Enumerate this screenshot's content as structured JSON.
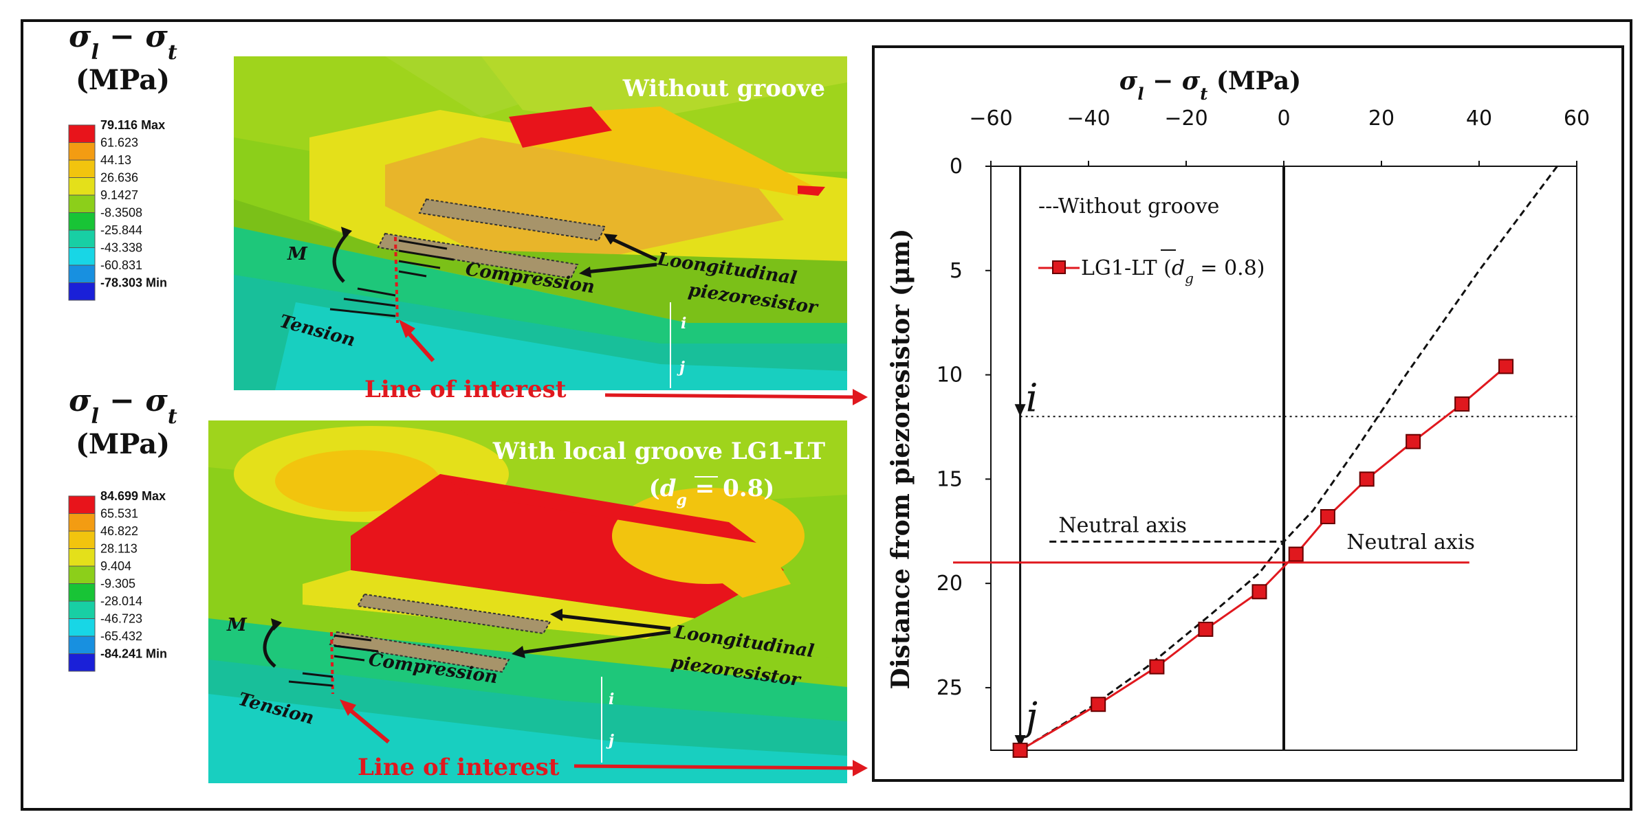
{
  "legend_top": {
    "symbol": "σ_l − σ_t",
    "unit": "(MPa)",
    "max_label": "79.116 Max",
    "values": [
      "61.623",
      "44.13",
      "26.636",
      "9.1427",
      "-8.3508",
      "-25.844",
      "-43.338",
      "-60.831"
    ],
    "min_label": "-78.303 Min",
    "colors": [
      "#e8141b",
      "#f39c12",
      "#f2c40e",
      "#e4e01a",
      "#8ccf1a",
      "#18c436",
      "#18cfa4",
      "#18d6e6",
      "#1890e0",
      "#1a20d8"
    ]
  },
  "legend_bottom": {
    "symbol": "σ_l − σ_t",
    "unit": "(MPa)",
    "max_label": "84.699 Max",
    "values": [
      "65.531",
      "46.822",
      "28.113",
      "9.404",
      "-9.305",
      "-28.014",
      "-46.723",
      "-65.432"
    ],
    "min_label": "-84.241 Min",
    "colors": [
      "#e8141b",
      "#f39c12",
      "#f2c40e",
      "#e4e01a",
      "#8ccf1a",
      "#18c436",
      "#18cfa4",
      "#18d6e6",
      "#1890e0",
      "#1a20d8"
    ]
  },
  "panel_top": {
    "title": "Without groove",
    "moment": "M",
    "compression": "Compression",
    "tension": "Tension",
    "piezo_line1": "Loongitudinal",
    "piezo_line2": "piezoresistor",
    "i": "i",
    "j": "j",
    "line_of_interest": "Line of interest"
  },
  "panel_bottom": {
    "title_line1": "With local groove LG1-LT",
    "title_line2": "(d_g = 0.8)",
    "moment": "M",
    "compression": "Compression",
    "tension": "Tension",
    "piezo_line1": "Loongitudinal",
    "piezo_line2": "piezoresistor",
    "i": "i",
    "j": "j",
    "line_of_interest": "Line of interest"
  },
  "chart_data": {
    "type": "line",
    "title": "",
    "xlabel": "σ_l − σ_t (MPa)",
    "ylabel": "Distance from piezoresistor (μm)",
    "xlim": [
      -60,
      60
    ],
    "ylim": [
      0,
      28
    ],
    "y_inverted": true,
    "x_axis_position": "top",
    "x_ticks": [
      -60,
      -40,
      -20,
      0,
      20,
      40,
      60
    ],
    "y_ticks": [
      0,
      5,
      10,
      15,
      20,
      25
    ],
    "series": [
      {
        "name": "Without groove",
        "style": "dashed",
        "color": "#111111",
        "x": [
          56,
          40,
          25,
          15,
          6,
          0,
          -5,
          -15,
          -28,
          -40,
          -54
        ],
        "y": [
          0,
          5,
          10,
          13.5,
          16.5,
          18,
          19.5,
          21.5,
          24,
          26,
          28
        ]
      },
      {
        "name": "LG1-LT (d_g = 0.8)",
        "style": "solid",
        "marker": "square",
        "color": "#e0181e",
        "x": [
          45.5,
          36.5,
          26.5,
          17,
          9,
          2.5,
          -5,
          -16,
          -26,
          -38,
          -54
        ],
        "y": [
          9.6,
          11.4,
          13.2,
          15,
          16.8,
          18.6,
          20.4,
          22.2,
          24,
          25.8,
          28
        ]
      }
    ],
    "annotations": [
      {
        "text": "Neutral axis",
        "color": "#111111",
        "y": 18
      },
      {
        "text": "Neutral axis",
        "color": "#e0181e",
        "y": 19
      },
      {
        "text": "i",
        "y": 12
      },
      {
        "text": "j",
        "y": 28
      }
    ],
    "legend": {
      "placement": "top-left",
      "entries": [
        "---Without groove",
        "LG1-LT (d_g = 0.8)"
      ],
      "entry1_text": "---Without groove",
      "entry2_prefix": "LG1-LT (",
      "entry2_var": "d_g",
      "entry2_suffix": " = 0.8)"
    },
    "tick_labels_x": [
      "−60",
      "−40",
      "−20",
      "0",
      "20",
      "40",
      "60"
    ],
    "tick_labels_y": [
      "0",
      "5",
      "10",
      "15",
      "20",
      "25"
    ]
  }
}
